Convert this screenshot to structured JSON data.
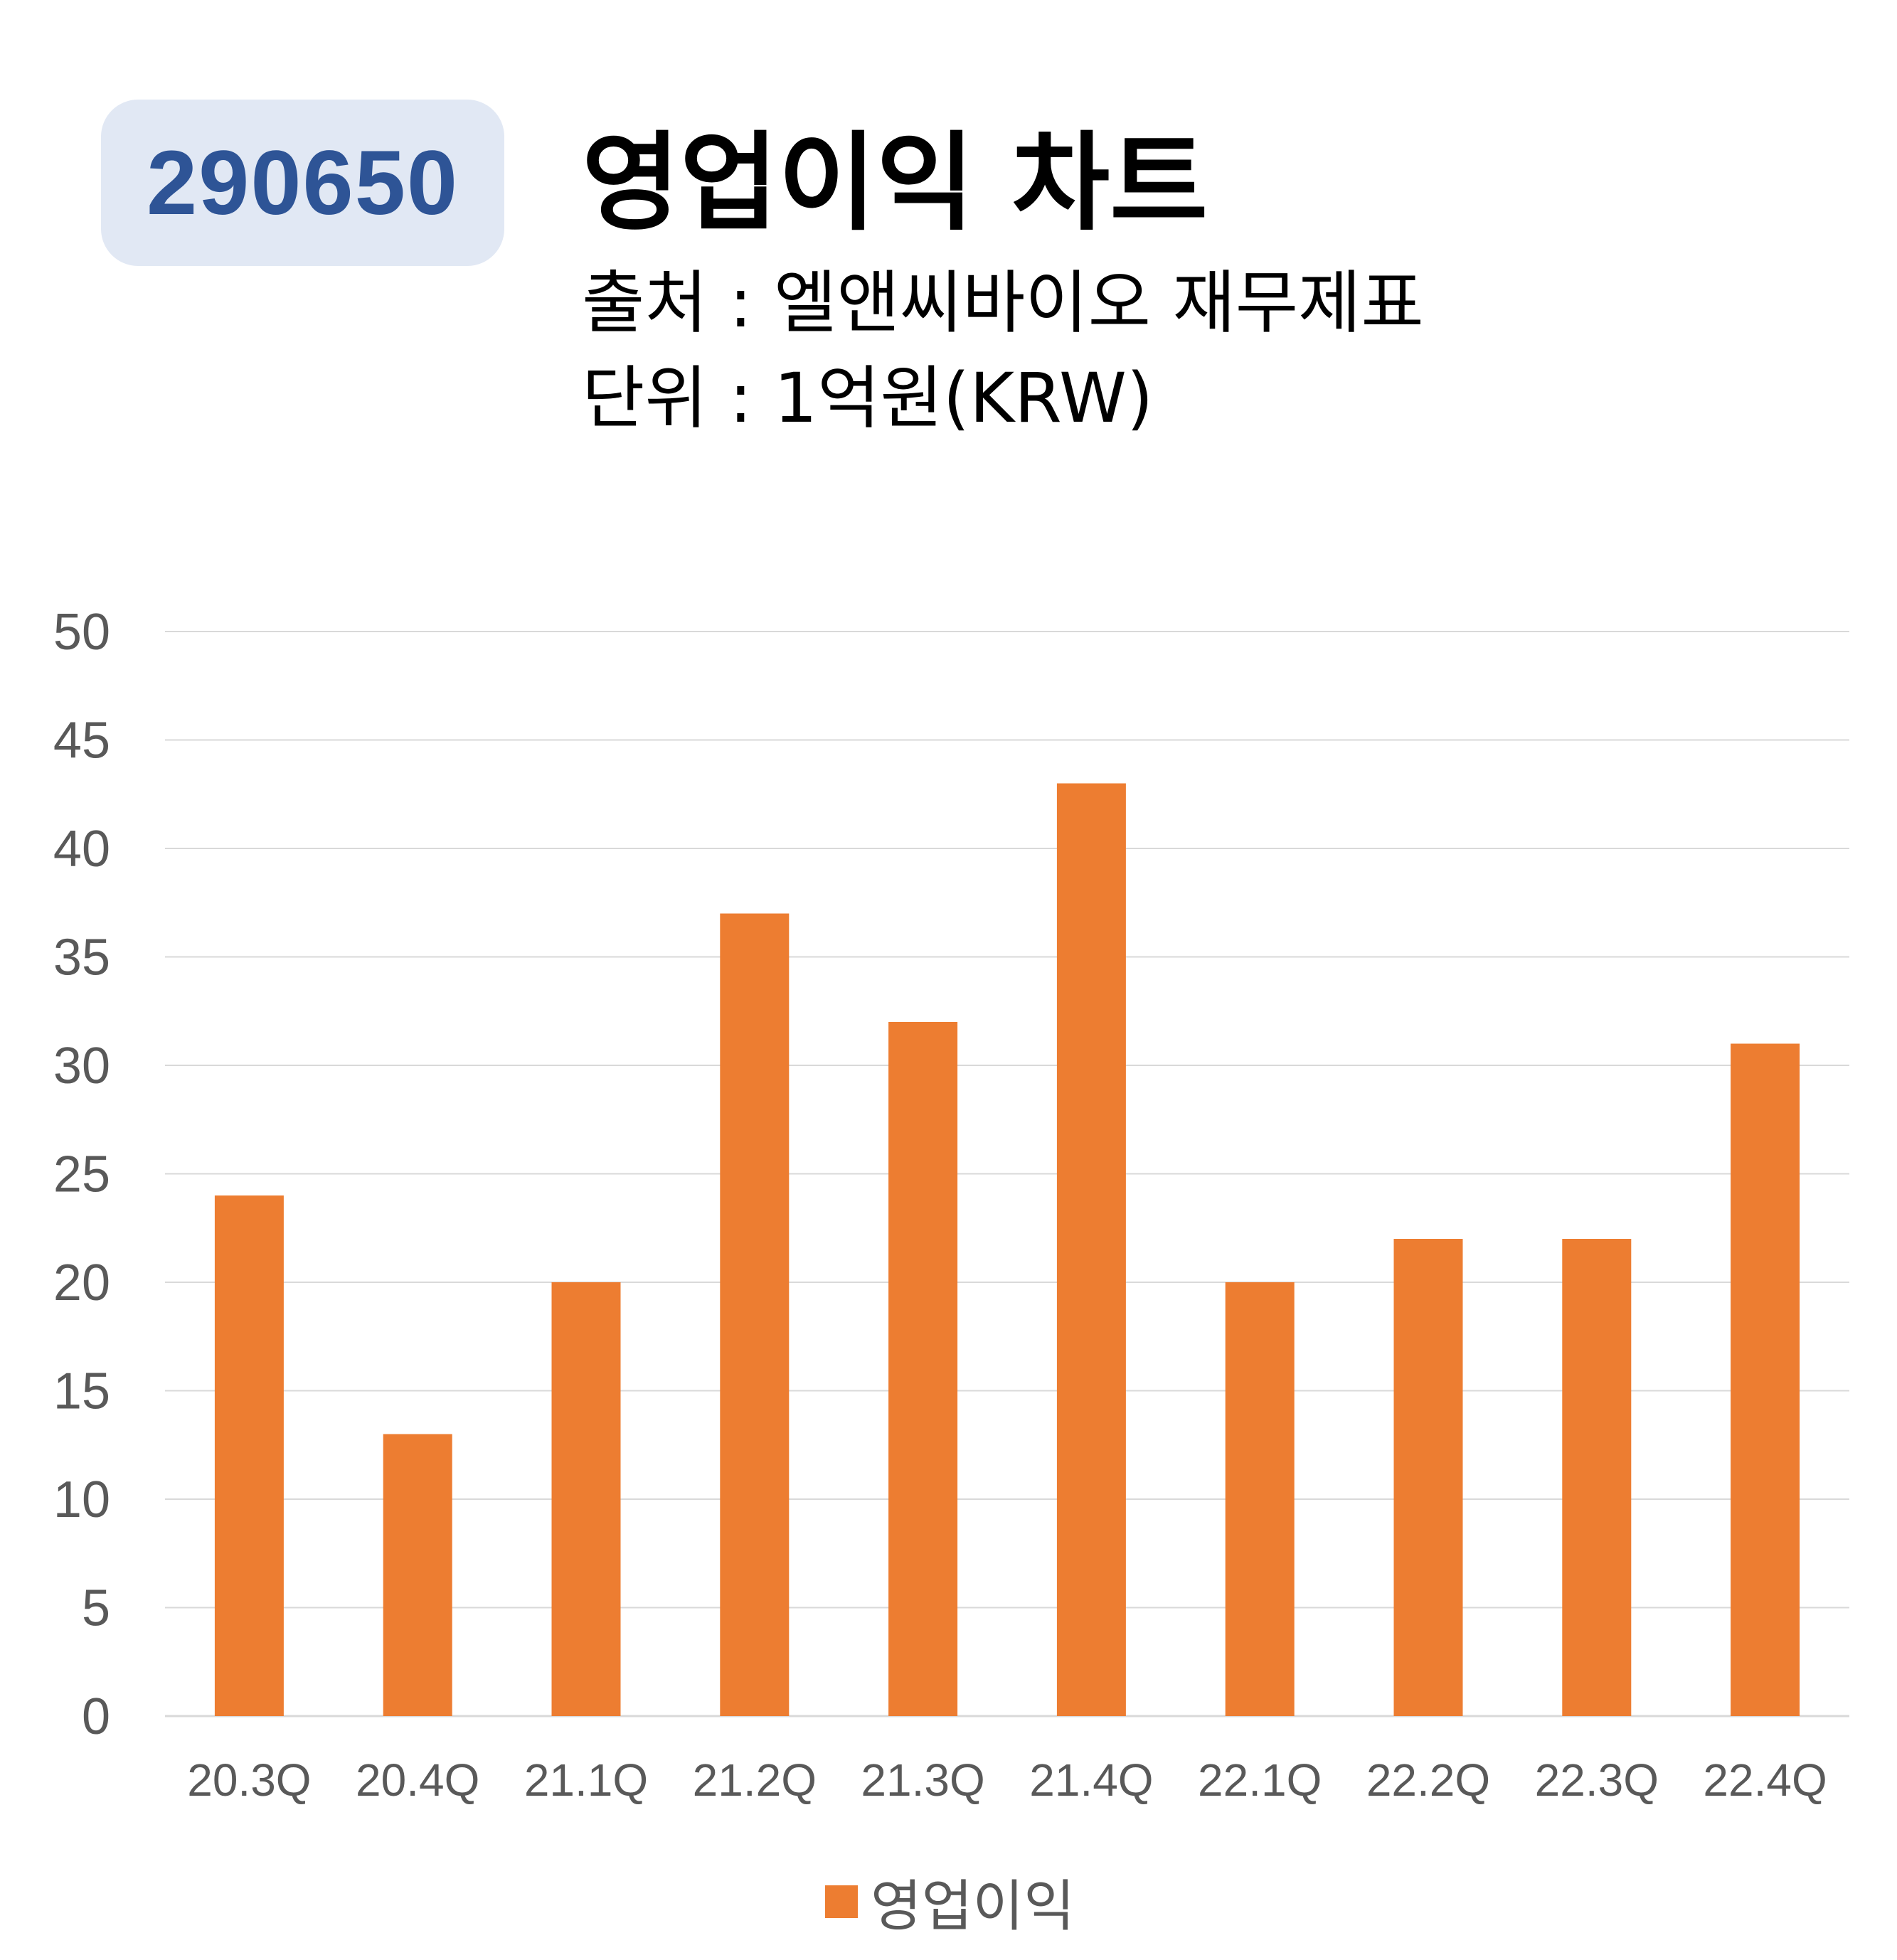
{
  "header": {
    "code": "290650",
    "title": "영업이익 차트",
    "source": "출처 : 엘앤씨바이오 재무제표",
    "unit": "단위 : 1억원(KRW)"
  },
  "colors": {
    "badge_bg": "#e1e8f4",
    "badge_text": "#2e5496",
    "bar": "#ed7d31",
    "grid": "#d9d9d9",
    "axis_text": "#595959"
  },
  "chart_data": {
    "type": "bar",
    "categories": [
      "20.3Q",
      "20.4Q",
      "21.1Q",
      "21.2Q",
      "21.3Q",
      "21.4Q",
      "22.1Q",
      "22.2Q",
      "22.3Q",
      "22.4Q"
    ],
    "series": [
      {
        "name": "영업이익",
        "values": [
          24,
          13,
          20,
          37,
          32,
          43,
          20,
          22,
          22,
          31
        ]
      }
    ],
    "ylim": [
      0,
      50
    ],
    "yticks": [
      0,
      5,
      10,
      15,
      20,
      25,
      30,
      35,
      40,
      45,
      50
    ],
    "grid": true,
    "legend": "bottom-center"
  }
}
